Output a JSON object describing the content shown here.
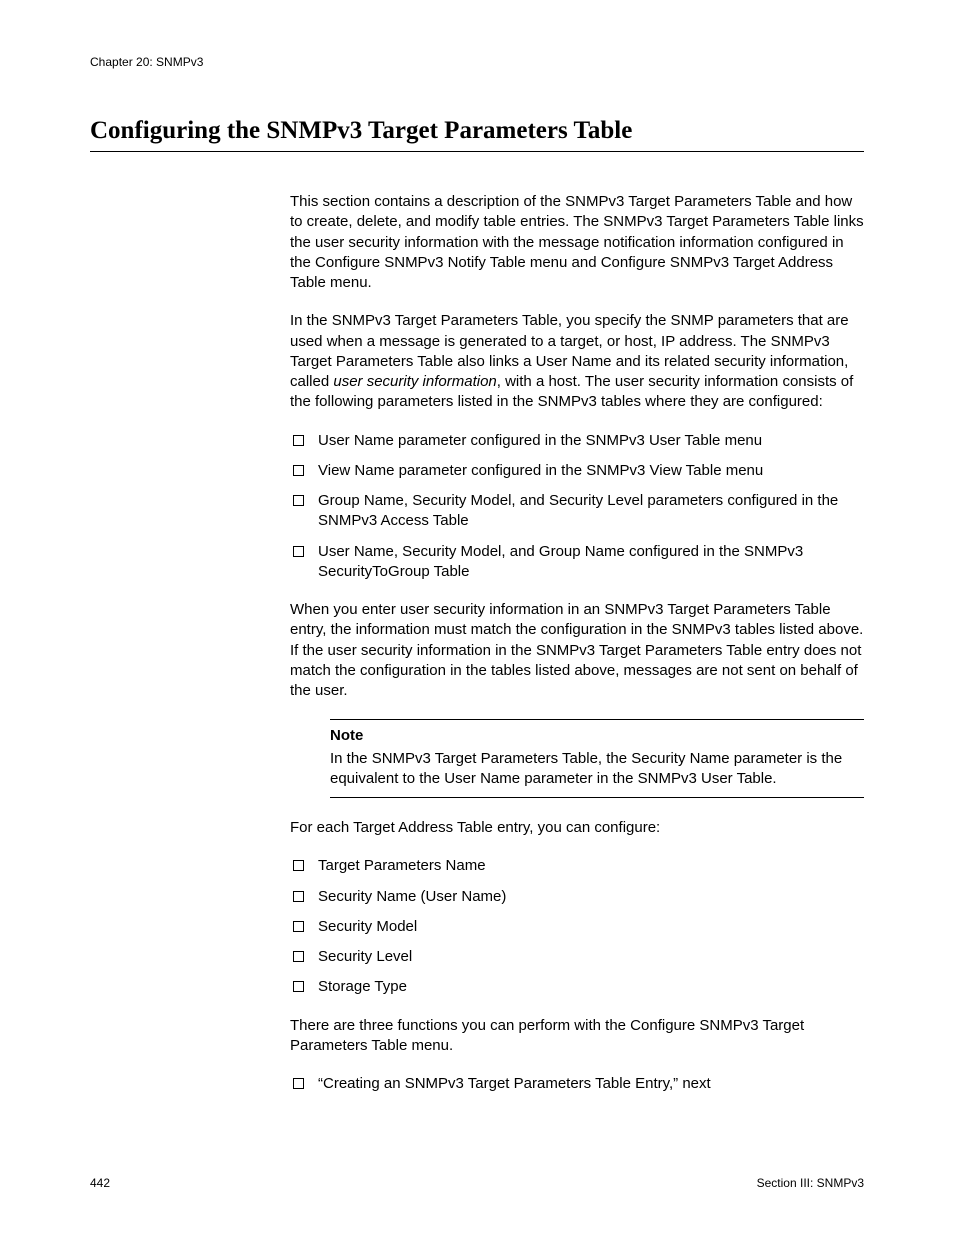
{
  "header": {
    "chapter": "Chapter 20: SNMPv3"
  },
  "title": "Configuring the SNMPv3 Target Parameters Table",
  "body": {
    "p1": "This section contains a description of the SNMPv3 Target Parameters Table and how to create, delete, and modify table entries. The SNMPv3 Target Parameters Table links the user security information with the message notification information configured in the Configure SNMPv3 Notify Table menu and Configure SNMPv3 Target Address Table menu.",
    "p2_pre": "In the SNMPv3 Target Parameters Table, you specify the SNMP parameters that are used when a message is generated to a target, or host, IP address. The SNMPv3 Target Parameters Table also links a User Name and its related security information, called ",
    "p2_italic": "user security information",
    "p2_post": ", with a host. The user security information consists of the following parameters listed in the SNMPv3 tables where they are configured:",
    "list1": [
      "User Name parameter configured in the SNMPv3 User Table menu",
      "View Name parameter configured in the SNMPv3 View Table menu",
      "Group Name, Security Model, and Security Level parameters configured in the SNMPv3 Access Table",
      "User Name, Security Model, and Group Name configured in the SNMPv3 SecurityToGroup Table"
    ],
    "p3": "When you enter user security information in an SNMPv3 Target Parameters Table entry, the information must match the configuration in the SNMPv3 tables listed above. If the user security information in the SNMPv3 Target Parameters Table entry does not match the configuration in the tables listed above, messages are not sent on behalf of the user.",
    "note": {
      "label": "Note",
      "text": "In the SNMPv3 Target Parameters Table, the Security Name parameter is the equivalent to the User Name parameter in the SNMPv3 User Table."
    },
    "p4": "For each Target Address Table entry, you can configure:",
    "list2": [
      "Target Parameters Name",
      "Security Name (User Name)",
      "Security Model",
      "Security Level",
      "Storage Type"
    ],
    "p5": "There are three functions you can perform with the Configure SNMPv3 Target Parameters Table menu.",
    "list3": [
      "“Creating an SNMPv3 Target Parameters Table Entry,”  next"
    ]
  },
  "footer": {
    "page_number": "442",
    "section": "Section III: SNMPv3"
  }
}
